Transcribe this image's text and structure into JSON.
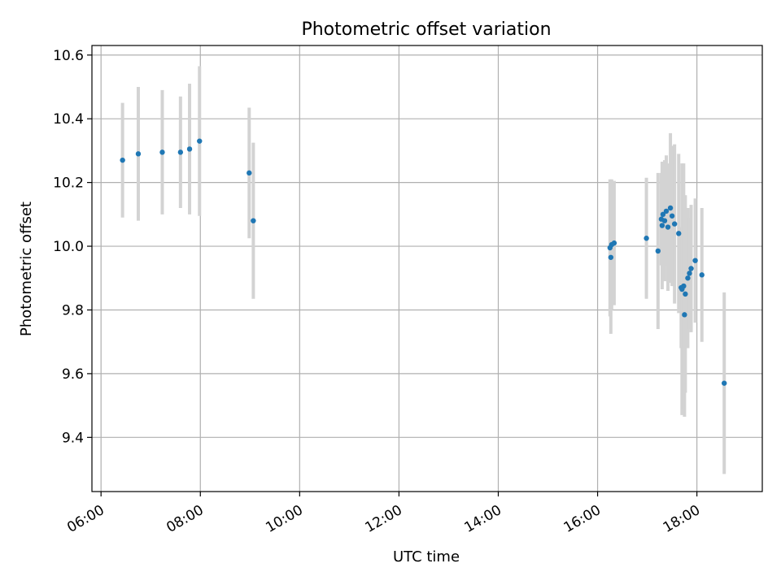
{
  "chart_data": {
    "type": "scatter",
    "title": "Photometric offset variation",
    "xlabel": "UTC time",
    "ylabel": "Photometric offset",
    "x_ticks": [
      "06:00",
      "08:00",
      "10:00",
      "12:00",
      "14:00",
      "16:00",
      "18:00"
    ],
    "x_tick_hours": [
      6,
      8,
      10,
      12,
      14,
      16,
      18
    ],
    "y_ticks": [
      "9.4",
      "9.6",
      "9.8",
      "10.0",
      "10.2",
      "10.4",
      "10.6"
    ],
    "y_tick_values": [
      9.4,
      9.6,
      9.8,
      10.0,
      10.2,
      10.4,
      10.6
    ],
    "xlim": [
      "05:49",
      "19:19"
    ],
    "ylim": [
      9.23,
      10.63
    ],
    "grid": true,
    "point_color": "#1f77b4",
    "errorbar_color": "#d3d3d3",
    "series": [
      {
        "points": [
          {
            "x": "06:26",
            "y": 10.27,
            "err": 0.18
          },
          {
            "x": "06:45",
            "y": 10.29,
            "err": 0.21
          },
          {
            "x": "07:14",
            "y": 10.295,
            "err": 0.195
          },
          {
            "x": "07:36",
            "y": 10.295,
            "err": 0.175
          },
          {
            "x": "07:47",
            "y": 10.305,
            "err": 0.205
          },
          {
            "x": "07:59",
            "y": 10.33,
            "err": 0.235
          },
          {
            "x": "08:59",
            "y": 10.23,
            "err": 0.205
          },
          {
            "x": "09:04",
            "y": 10.08,
            "err": 0.245
          },
          {
            "x": "16:15",
            "y": 9.995,
            "err": 0.215
          },
          {
            "x": "16:16",
            "y": 9.965,
            "err": 0.24
          },
          {
            "x": "16:17",
            "y": 10.005,
            "err": 0.205
          },
          {
            "x": "16:20",
            "y": 10.01,
            "err": 0.195
          },
          {
            "x": "16:59",
            "y": 10.025,
            "err": 0.19
          },
          {
            "x": "17:13",
            "y": 9.985,
            "err": 0.245
          },
          {
            "x": "17:17",
            "y": 10.085,
            "err": 0.145
          },
          {
            "x": "17:18",
            "y": 10.065,
            "err": 0.2
          },
          {
            "x": "17:19",
            "y": 10.1,
            "err": 0.165
          },
          {
            "x": "17:21",
            "y": 10.08,
            "err": 0.19
          },
          {
            "x": "17:23",
            "y": 10.11,
            "err": 0.175
          },
          {
            "x": "17:25",
            "y": 10.06,
            "err": 0.2
          },
          {
            "x": "17:28",
            "y": 10.12,
            "err": 0.235
          },
          {
            "x": "17:30",
            "y": 10.095,
            "err": 0.22
          },
          {
            "x": "17:33",
            "y": 10.07,
            "err": 0.25
          },
          {
            "x": "17:38",
            "y": 10.04,
            "err": 0.25
          },
          {
            "x": "17:41",
            "y": 9.87,
            "err": 0.19
          },
          {
            "x": "17:42",
            "y": 9.865,
            "err": 0.395
          },
          {
            "x": "17:44",
            "y": 9.875,
            "err": 0.385
          },
          {
            "x": "17:45",
            "y": 9.785,
            "err": 0.32
          },
          {
            "x": "17:46",
            "y": 9.85,
            "err": 0.31
          },
          {
            "x": "17:49",
            "y": 9.9,
            "err": 0.22
          },
          {
            "x": "17:51",
            "y": 9.915,
            "err": 0.175
          },
          {
            "x": "17:53",
            "y": 9.93,
            "err": 0.2
          },
          {
            "x": "17:58",
            "y": 9.955,
            "err": 0.195
          },
          {
            "x": "18:06",
            "y": 9.91,
            "err": 0.21
          },
          {
            "x": "18:33",
            "y": 9.57,
            "err": 0.285
          }
        ]
      }
    ]
  }
}
